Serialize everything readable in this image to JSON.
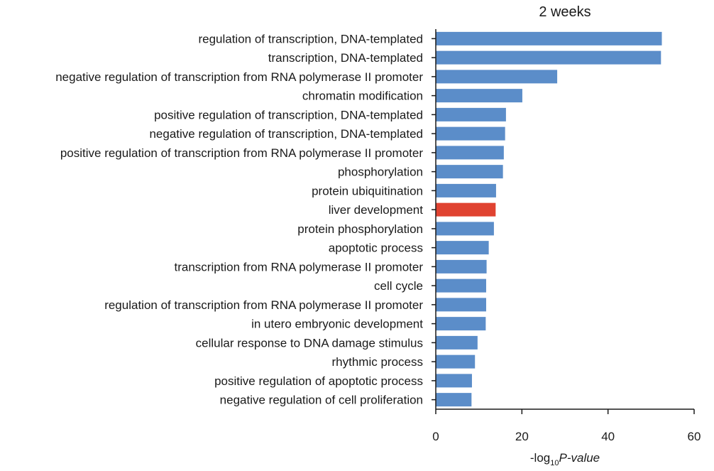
{
  "chart_data": {
    "type": "bar",
    "orientation": "horizontal",
    "title": "2 weeks",
    "xlabel_prefix": "-log",
    "xlabel_sub": "10",
    "xlabel_italic": "P-value",
    "ylabel": "",
    "xlim": [
      0,
      60
    ],
    "xticks": [
      "0",
      "20",
      "40",
      "60"
    ],
    "grid": false,
    "categories": [
      "regulation of transcription, DNA-templated",
      "transcription, DNA-templated",
      "negative regulation of transcription from RNA polymerase II promoter",
      "chromatin modification",
      "positive regulation of transcription, DNA-templated",
      "negative regulation of transcription, DNA-templated",
      "positive regulation of transcription from RNA polymerase II promoter",
      "phosphorylation",
      "protein ubiquitination",
      "liver development",
      "protein phosphorylation",
      "apoptotic process",
      "transcription from RNA polymerase II promoter",
      "cell cycle",
      "regulation of transcription from RNA polymerase II promoter",
      "in utero embryonic development",
      "cellular response to DNA damage stimulus",
      "rhythmic process",
      "positive regulation of apoptotic process",
      "negative regulation of cell proliferation"
    ],
    "values": [
      52.5,
      52.3,
      28.2,
      20.1,
      16.3,
      16.1,
      15.8,
      15.6,
      14.0,
      13.9,
      13.5,
      12.3,
      11.8,
      11.7,
      11.7,
      11.6,
      9.7,
      9.1,
      8.4,
      8.3
    ],
    "highlight_index": 9,
    "colors": {
      "bar": "#5b8dc9",
      "highlight": "#e04331",
      "axis": "#1a1a1a"
    }
  }
}
